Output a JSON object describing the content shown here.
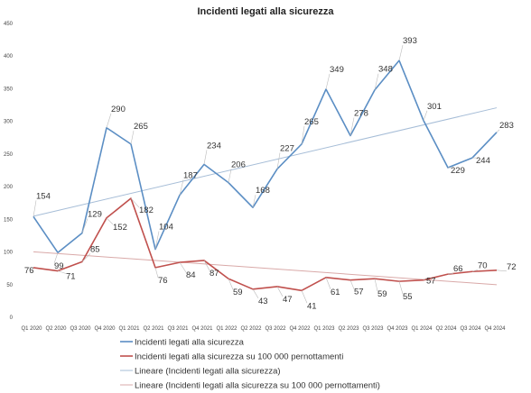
{
  "chart_data": {
    "type": "line",
    "title": "Incidenti legati alla sicurezza",
    "xlabel": "",
    "ylabel": "",
    "ylim": [
      0,
      450
    ],
    "yticks": [
      0,
      50,
      100,
      150,
      200,
      250,
      300,
      350,
      400,
      450
    ],
    "grid": false,
    "legend_position": "bottom",
    "categories": [
      "Q1 2020",
      "Q2 2020",
      "Q3 2020",
      "Q4 2020",
      "Q1 2021",
      "Q2 2021",
      "Q3 2021",
      "Q4 2021",
      "Q1 2022",
      "Q2 2022",
      "Q3 2022",
      "Q4 2022",
      "Q1 2023",
      "Q2 2023",
      "Q3 2023",
      "Q4 2023",
      "Q1 2024",
      "Q2 2024",
      "Q3 2024",
      "Q4 2024"
    ],
    "series": [
      {
        "name": "Incidenti legati alla sicurezza",
        "color": "#5B8EC4",
        "values": [
          154,
          99,
          129,
          290,
          265,
          104,
          187,
          234,
          206,
          168,
          227,
          265,
          349,
          278,
          348,
          393,
          301,
          229,
          244,
          283
        ]
      },
      {
        "name": "Incidenti legati alla sicurezza su 100 000 pernottamenti",
        "color": "#C0504D",
        "values": [
          76,
          71,
          85,
          152,
          182,
          76,
          84,
          87,
          59,
          43,
          47,
          41,
          61,
          57,
          59,
          55,
          57,
          66,
          70,
          72
        ]
      }
    ],
    "trendlines": [
      {
        "name": "Lineare (Incidenti legati alla sicurezza)",
        "color": "#A6BDD7",
        "of_series": 0
      },
      {
        "name": "Lineare (Incidenti legati alla sicurezza su 100 000 pernottamenti)",
        "color": "#D9A9A8",
        "of_series": 1
      }
    ]
  }
}
